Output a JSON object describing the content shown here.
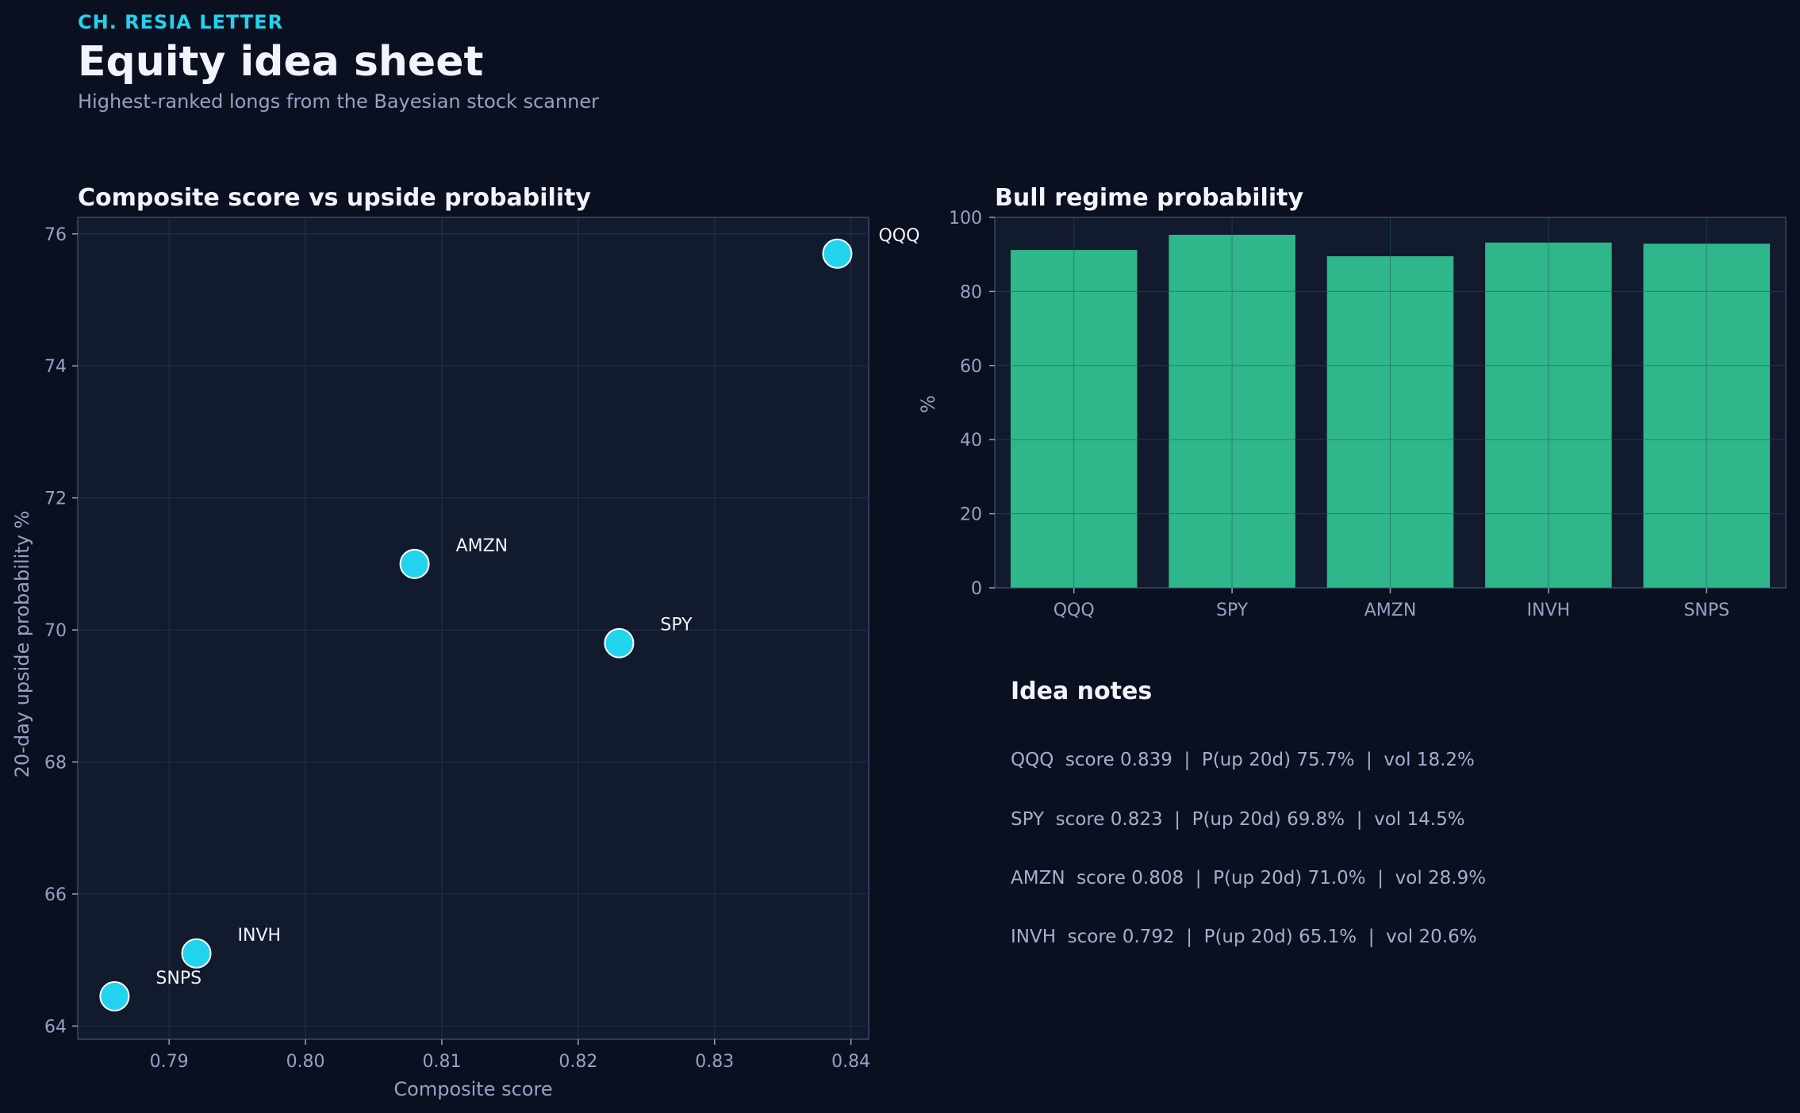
{
  "header": {
    "kicker": "CH. RESIA LETTER",
    "title": "Equity idea sheet",
    "subtitle": "Highest-ranked longs from the Bayesian stock scanner"
  },
  "chart_data": [
    {
      "type": "scatter",
      "title": "Composite score vs upside probability",
      "xlabel": "Composite score",
      "ylabel": "20-day upside probability %",
      "xlim": [
        0.7833,
        0.8413
      ],
      "ylim": [
        63.8,
        76.25
      ],
      "xticks": [
        "0.79",
        "0.80",
        "0.81",
        "0.82",
        "0.83",
        "0.84"
      ],
      "xtick_values": [
        0.79,
        0.8,
        0.81,
        0.82,
        0.83,
        0.84
      ],
      "yticks": [
        "64",
        "66",
        "68",
        "70",
        "72",
        "74",
        "76"
      ],
      "ytick_values": [
        64,
        66,
        68,
        70,
        72,
        74,
        76
      ],
      "grid": true,
      "points": [
        {
          "label": "QQQ",
          "x": 0.839,
          "y": 75.7
        },
        {
          "label": "AMZN",
          "x": 0.808,
          "y": 71.0
        },
        {
          "label": "SPY",
          "x": 0.823,
          "y": 69.8
        },
        {
          "label": "INVH",
          "x": 0.792,
          "y": 65.1
        },
        {
          "label": "SNPS",
          "x": 0.786,
          "y": 64.45
        }
      ],
      "point_color": "#22d3ee"
    },
    {
      "type": "bar",
      "title": "Bull regime probability",
      "xlabel": "",
      "ylabel": "%",
      "ylim": [
        0,
        100
      ],
      "yticks": [
        "0",
        "20",
        "40",
        "60",
        "80",
        "100"
      ],
      "ytick_values": [
        0,
        20,
        40,
        60,
        80,
        100
      ],
      "grid": true,
      "categories": [
        "QQQ",
        "SPY",
        "AMZN",
        "INVH",
        "SNPS"
      ],
      "values": [
        91.2,
        95.3,
        89.5,
        93.2,
        92.9
      ],
      "bar_color": "#2fb68a"
    }
  ],
  "notes": {
    "title": "Idea notes",
    "items": [
      "QQQ  score 0.839  |  P(up 20d) 75.7%  |  vol 18.2%",
      "SPY  score 0.823  |  P(up 20d) 69.8%  |  vol 14.5%",
      "AMZN  score 0.808  |  P(up 20d) 71.0%  |  vol 28.9%",
      "INVH  score 0.792  |  P(up 20d) 65.1%  |  vol 20.6%"
    ]
  }
}
